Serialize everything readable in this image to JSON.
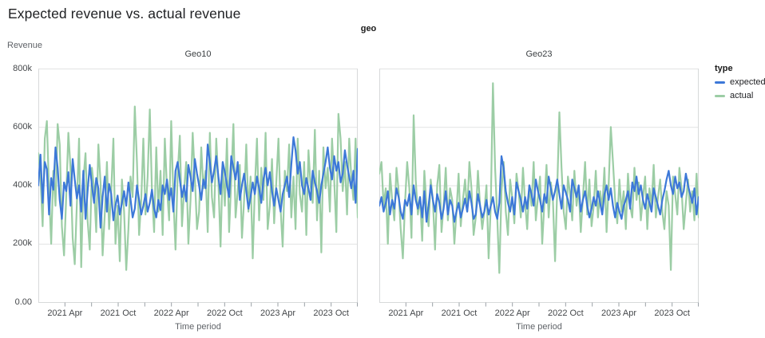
{
  "page": {
    "title": "Expected revenue vs. actual revenue"
  },
  "chart_data": {
    "type": "line",
    "title": "Expected revenue vs. actual revenue",
    "facet_field_label": "geo",
    "x": {
      "label": "Time period",
      "tick_labels": [
        "2021 Apr",
        "2021 Oct",
        "2022 Apr",
        "2022 Oct",
        "2023 Apr",
        "2023 Oct"
      ],
      "label_months": [
        3,
        9,
        15,
        21,
        27,
        33
      ],
      "tick_step_months": 3,
      "domain_months": 36,
      "domain_note": "Jan 2021 through Dec 2023, weekly points"
    },
    "y": {
      "label": "Revenue",
      "tick_labels": [
        "0.00",
        "200k",
        "400k",
        "600k",
        "800k"
      ],
      "tick_values": [
        0,
        200,
        400,
        600,
        800
      ],
      "ylim": [
        0,
        800
      ],
      "unit": "thousands",
      "grid": true
    },
    "legend": {
      "title": "type",
      "position": "right",
      "items": [
        {
          "label": "expected",
          "color": "#3C78D8"
        },
        {
          "label": "actual",
          "color": "#9CCDA5"
        }
      ]
    },
    "facets": [
      {
        "name": "Geo10",
        "series": [
          {
            "name": "expected",
            "color": "#3C78D8",
            "values": [
              400,
              505,
              340,
              480,
              455,
              300,
              425,
              385,
              530,
              460,
              350,
              285,
              410,
              380,
              445,
              330,
              490,
              420,
              355,
              400,
              310,
              450,
              285,
              380,
              470,
              400,
              340,
              425,
              390,
              255,
              360,
              430,
              310,
              405,
              370,
              280,
              330,
              365,
              300,
              340,
              380,
              330,
              410,
              355,
              290,
              320,
              400,
              350,
              300,
              330,
              370,
              310,
              340,
              385,
              320,
              290,
              350,
              315,
              400,
              370,
              420,
              350,
              390,
              310,
              450,
              480,
              420,
              360,
              400,
              345,
              470,
              430,
              380,
              490,
              440,
              400,
              350,
              420,
              390,
              540,
              480,
              410,
              450,
              500,
              430,
              370,
              480,
              445,
              400,
              360,
              500,
              460,
              420,
              480,
              350,
              400,
              440,
              380,
              320,
              360,
              410,
              370,
              430,
              390,
              340,
              420,
              460,
              400,
              445,
              380,
              330,
              390,
              350,
              310,
              370,
              400,
              430,
              360,
              470,
              565,
              520,
              440,
              480,
              400,
              370,
              425,
              390,
              350,
              450,
              410,
              380,
              340,
              400,
              440,
              480,
              530,
              460,
              420,
              500,
              450,
              480,
              410,
              440,
              520,
              470,
              430,
              390,
              450,
              340,
              525
            ]
          },
          {
            "name": "actual",
            "color": "#9CCDA5",
            "values": [
              510,
              430,
              260,
              560,
              620,
              380,
              200,
              450,
              330,
              610,
              540,
              260,
              160,
              360,
              580,
              460,
              220,
              130,
              340,
              560,
              120,
              420,
              510,
              280,
              180,
              460,
              390,
              240,
              540,
              410,
              160,
              300,
              480,
              250,
              380,
              560,
              200,
              330,
              140,
              420,
              310,
              110,
              250,
              430,
              360,
              670,
              480,
              230,
              350,
              560,
              300,
              430,
              660,
              380,
              240,
              530,
              310,
              450,
              230,
              560,
              390,
              280,
              620,
              360,
              180,
              440,
              570,
              260,
              390,
              480,
              200,
              350,
              580,
              430,
              250,
              310,
              530,
              390,
              450,
              240,
              580,
              360,
              290,
              560,
              410,
              190,
              470,
              330,
              560,
              240,
              420,
              610,
              290,
              380,
              470,
              220,
              350,
              540,
              310,
              430,
              150,
              390,
              560,
              280,
              460,
              350,
              580,
              250,
              330,
              490,
              270,
              410,
              560,
              320,
              190,
              450,
              380,
              540,
              290,
              430,
              250,
              560,
              370,
              310,
              480,
              230,
              520,
              400,
              340,
              590,
              280,
              450,
              170,
              530,
              390,
              460,
              310,
              560,
              420,
              240,
              645,
              560,
              380,
              480,
              300,
              560,
              430,
              350,
              560,
              290
            ]
          }
        ]
      },
      {
        "name": "Geo23",
        "series": [
          {
            "name": "expected",
            "color": "#3C78D8",
            "values": [
              330,
              360,
              310,
              340,
              380,
              300,
              350,
              320,
              390,
              360,
              310,
              285,
              350,
              330,
              370,
              300,
              400,
              350,
              320,
              360,
              290,
              380,
              275,
              330,
              400,
              350,
              310,
              370,
              340,
              285,
              320,
              380,
              300,
              350,
              330,
              275,
              310,
              340,
              290,
              320,
              355,
              310,
              380,
              340,
              285,
              300,
              370,
              330,
              290,
              310,
              350,
              300,
              330,
              360,
              310,
              285,
              340,
              500,
              460,
              380,
              340,
              310,
              360,
              300,
              410,
              380,
              350,
              310,
              360,
              320,
              400,
              370,
              330,
              420,
              380,
              350,
              310,
              370,
              340,
              430,
              390,
              350,
              380,
              420,
              370,
              320,
              400,
              375,
              350,
              310,
              420,
              390,
              360,
              400,
              310,
              350,
              380,
              330,
              290,
              320,
              360,
              330,
              380,
              340,
              300,
              370,
              400,
              350,
              390,
              330,
              290,
              340,
              310,
              285,
              330,
              350,
              380,
              320,
              410,
              380,
              430,
              370,
              400,
              350,
              320,
              370,
              340,
              310,
              390,
              360,
              330,
              300,
              350,
              380,
              420,
              450,
              400,
              370,
              430,
              390,
              410,
              360,
              380,
              440,
              400,
              370,
              340,
              390,
              300,
              360
            ]
          },
          {
            "name": "actual",
            "color": "#9CCDA5",
            "values": [
              440,
              480,
              330,
              390,
              200,
              440,
              350,
              280,
              460,
              380,
              250,
              150,
              340,
              480,
              390,
              220,
              640,
              420,
              300,
              360,
              210,
              450,
              330,
              260,
              420,
              350,
              180,
              400,
              470,
              240,
              330,
              460,
              280,
              390,
              350,
              200,
              310,
              440,
              260,
              350,
              420,
              310,
              480,
              390,
              230,
              290,
              450,
              330,
              250,
              310,
              400,
              150,
              330,
              750,
              460,
              290,
              100,
              380,
              480,
              310,
              230,
              420,
              360,
              270,
              440,
              380,
              290,
              460,
              340,
              250,
              400,
              330,
              480,
              280,
              360,
              430,
              200,
              340,
              470,
              290,
              410,
              350,
              140,
              390,
              650,
              460,
              310,
              250,
              430,
              370,
              280,
              450,
              330,
              390,
              240,
              360,
              480,
              300,
              420,
              260,
              330,
              450,
              290,
              380,
              320,
              460,
              240,
              400,
              600,
              480,
              350,
              270,
              420,
              310,
              380,
              250,
              440,
              330,
              290,
              460,
              350,
              410,
              280,
              360,
              430,
              250,
              390,
              330,
              470,
              290,
              360,
              420,
              310,
              250,
              380,
              330,
              110,
              430,
              370,
              300,
              460,
              390,
              250,
              340,
              420,
              310,
              380,
              280,
              440,
              290
            ]
          }
        ]
      }
    ]
  }
}
